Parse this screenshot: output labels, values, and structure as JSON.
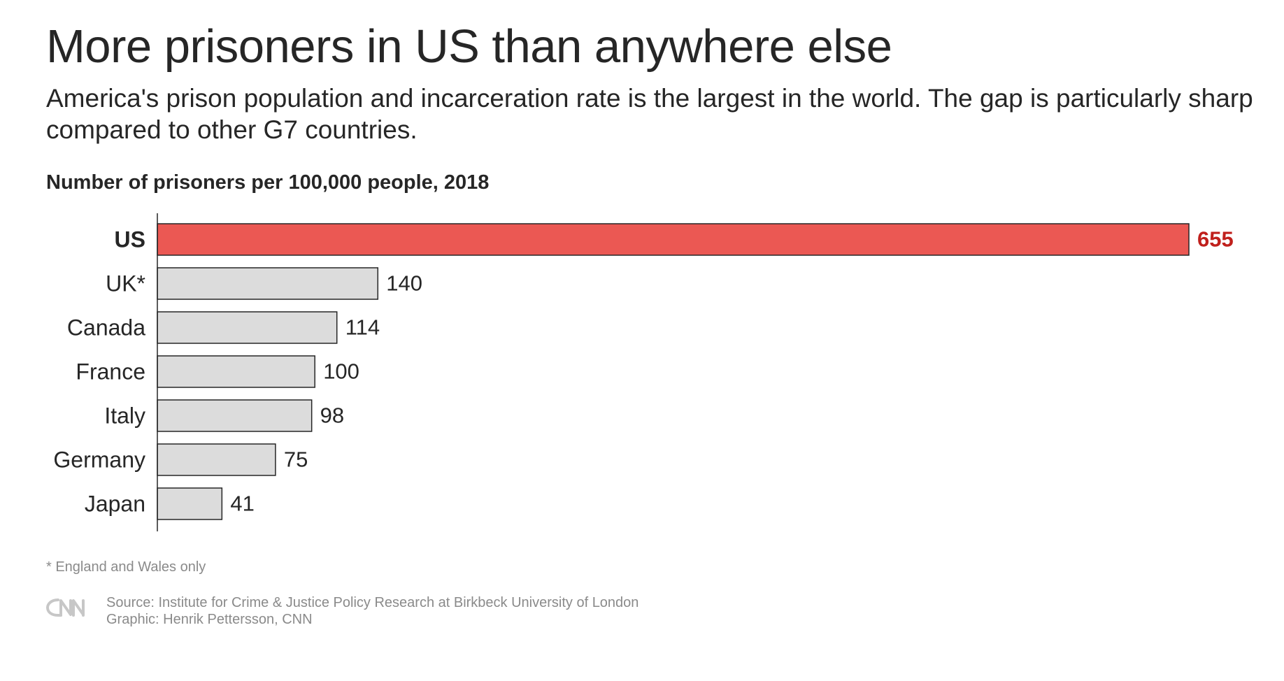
{
  "title": "More prisoners in US than anywhere else",
  "subtitle": "America's prison population and incarceration rate is the largest in the world. The gap is particularly sharp compared to other G7 countries.",
  "chart_label": "Number of prisoners per 100,000 people, 2018",
  "footnote": "* England and Wales only",
  "source": "Source: Institute for Crime & Justice Policy Research at Birkbeck University of London",
  "credit": "Graphic: Henrik Pettersson, CNN",
  "logo_text": "CNN",
  "colors": {
    "highlight": "#eb5853",
    "highlight_text": "#c0201c",
    "bar": "#dcdcdc",
    "bar_stroke": "#262626",
    "text": "#262626",
    "muted": "#8a8a8a"
  },
  "chart_data": {
    "type": "bar",
    "orientation": "horizontal",
    "title": "More prisoners in US than anywhere else",
    "subtitle": "Number of prisoners per 100,000 people, 2018",
    "categories": [
      "US",
      "UK*",
      "Canada",
      "France",
      "Italy",
      "Germany",
      "Japan"
    ],
    "values": [
      655,
      140,
      114,
      100,
      98,
      75,
      41
    ],
    "highlight": "US",
    "xlim": [
      0,
      655
    ],
    "grid": false,
    "legend": "none",
    "data_labels": true
  }
}
